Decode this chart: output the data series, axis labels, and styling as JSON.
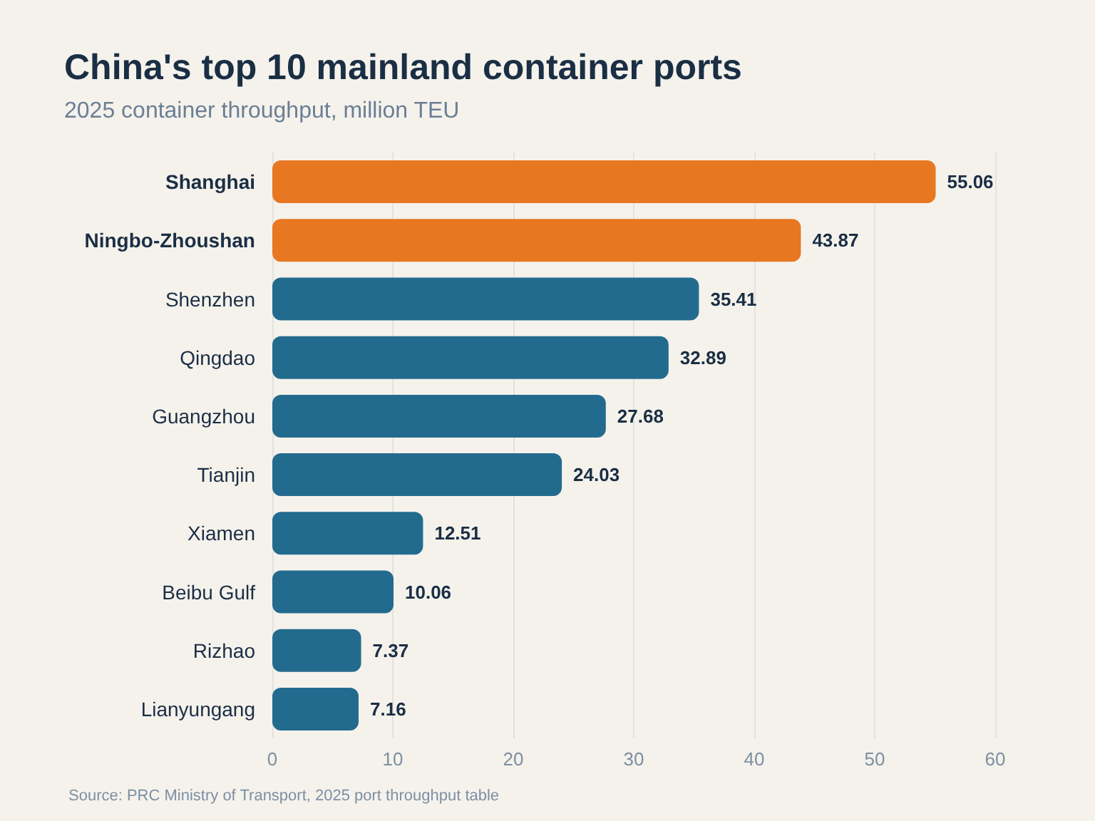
{
  "chart_data": {
    "type": "bar",
    "orientation": "horizontal",
    "title": "China's top 10 mainland container ports",
    "subtitle": "2025 container throughput, million TEU",
    "categories": [
      "Shanghai",
      "Ningbo-Zhoushan",
      "Shenzhen",
      "Qingdao",
      "Guangzhou",
      "Tianjin",
      "Xiamen",
      "Beibu Gulf",
      "Rizhao",
      "Lianyungang"
    ],
    "values": [
      55.06,
      43.87,
      35.41,
      32.89,
      27.68,
      24.03,
      12.51,
      10.06,
      7.37,
      7.16
    ],
    "colors": [
      "#e87722",
      "#e87722",
      "#236b8e",
      "#236b8e",
      "#236b8e",
      "#236b8e",
      "#236b8e",
      "#236b8e",
      "#236b8e",
      "#236b8e"
    ],
    "xlim": [
      0,
      60
    ],
    "xticks": [
      0,
      10,
      20,
      30,
      40,
      50,
      60
    ],
    "grid": "x",
    "data_labels": true,
    "annotations": [
      "Source: PRC Ministry of Transport, 2025 port throughput table"
    ]
  }
}
